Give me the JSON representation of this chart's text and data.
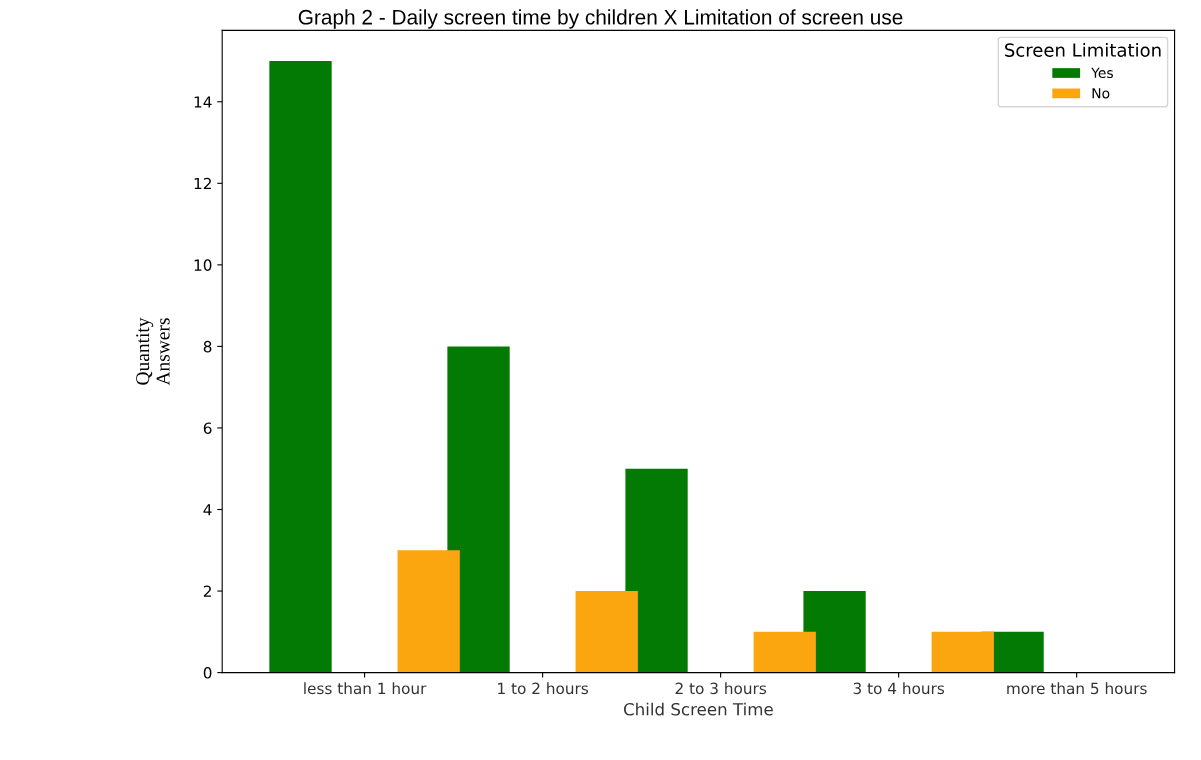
{
  "chart_data": {
    "type": "bar",
    "title": "Graph 2 - Daily screen time by children X Limitation of screen use",
    "xlabel": "Child Screen Time",
    "ylabel": "Quantity\nAnswers",
    "legend_title": "Screen Limitation",
    "categories": [
      "less than 1 hour",
      "1 to 2 hours",
      "2 to 3 hours",
      "3 to 4 hours",
      "more than 5 hours"
    ],
    "series": [
      {
        "name": "Yes",
        "color": "#037a03",
        "values": [
          15,
          8,
          5,
          2,
          1
        ]
      },
      {
        "name": "No",
        "color": "#fca60f",
        "values": [
          3,
          2,
          1,
          1,
          0
        ]
      }
    ],
    "ylim": [
      0,
      15.75
    ],
    "yticks": [
      0,
      2,
      4,
      6,
      8,
      10,
      12,
      14
    ],
    "grid": false,
    "legend": "top right"
  }
}
